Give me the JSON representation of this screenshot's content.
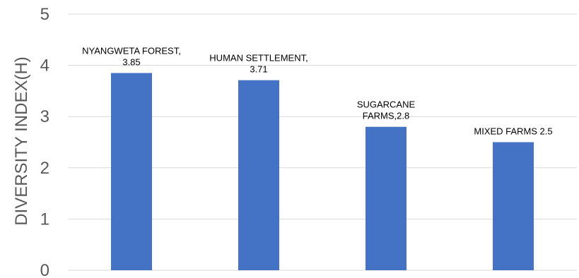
{
  "chart_data": {
    "type": "bar",
    "categories": [
      "NYANGWETA FOREST",
      "HUMAN SETTLEMENT",
      "SUGARCANE FARMS",
      "MIXED FARMS"
    ],
    "values": [
      3.85,
      3.71,
      2.8,
      2.5
    ],
    "data_labels": [
      [
        "NYANGWETA FOREST,",
        "3.85"
      ],
      [
        "HUMAN SETTLEMENT,",
        "3.71"
      ],
      [
        "SUGARCANE",
        "FARMS,2.8"
      ],
      [
        "MIXED FARMS 2.5"
      ]
    ],
    "title": "",
    "xlabel": "",
    "ylabel": "DIVERSITY INDEX(H)",
    "ylim": [
      0,
      5
    ],
    "yticks": [
      "0",
      "1",
      "2",
      "3",
      "4",
      "5"
    ],
    "grid": true,
    "legend": "none",
    "colors": {
      "bar": "#4472C4",
      "grid": "#D9D9D9",
      "axis_text": "#595959"
    }
  }
}
